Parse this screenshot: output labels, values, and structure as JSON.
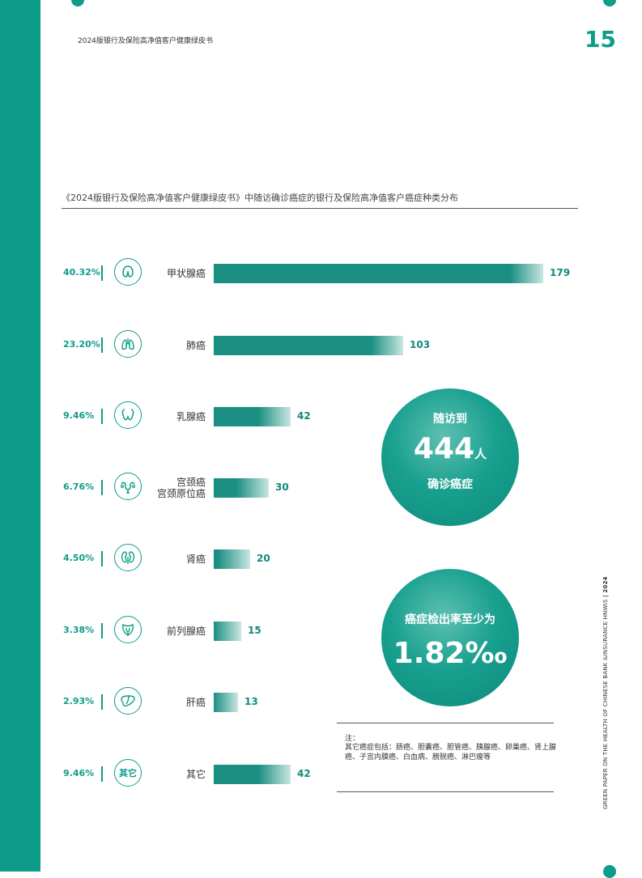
{
  "header": {
    "doc_title": "2024版银行及保险高净值客户健康绿皮书",
    "page_number": "15"
  },
  "chart_data": {
    "type": "bar",
    "title": "《2024版银行及保险高净值客户健康绿皮书》中随访确诊癌症的银行及保险高净值客户癌症种类分布",
    "categories": [
      "甲状腺癌",
      "肺癌",
      "乳腺癌",
      "宫颈癌\n宫颈原位癌",
      "肾癌",
      "前列腺癌",
      "肝癌",
      "其它"
    ],
    "values": [
      179,
      103,
      42,
      30,
      20,
      15,
      13,
      42
    ],
    "percentages": [
      "40.32%",
      "23.20%",
      "9.46%",
      "6.76%",
      "4.50%",
      "3.38%",
      "2.93%",
      "9.46%"
    ],
    "icons": [
      "thyroid-icon",
      "lungs-icon",
      "breast-icon",
      "uterus-icon",
      "kidney-icon",
      "prostate-icon",
      "liver-icon",
      "other-icon"
    ],
    "other_icon_text": "其它",
    "bar_color": "#1a8f82",
    "accent_color": "#0e9c8a"
  },
  "highlights": {
    "followup": {
      "top": "随访到",
      "number": "444",
      "unit": "人",
      "bottom": "确诊癌症"
    },
    "detection": {
      "top": "癌症检出率至少为",
      "number": "1.82‰"
    }
  },
  "note": {
    "head": "注：",
    "body": "其它癌症包括：肠癌、胆囊癌、胆管癌、胰腺癌、卵巢癌、肾上腺癌、子宫内膜癌、白血病、膀胱癌、淋巴瘤等"
  },
  "side_text": {
    "main": "GREEN PAPER ON THE HEALTH OF CHINESE BANK &INSURANCE HNWIS",
    "year": "| 2024"
  }
}
